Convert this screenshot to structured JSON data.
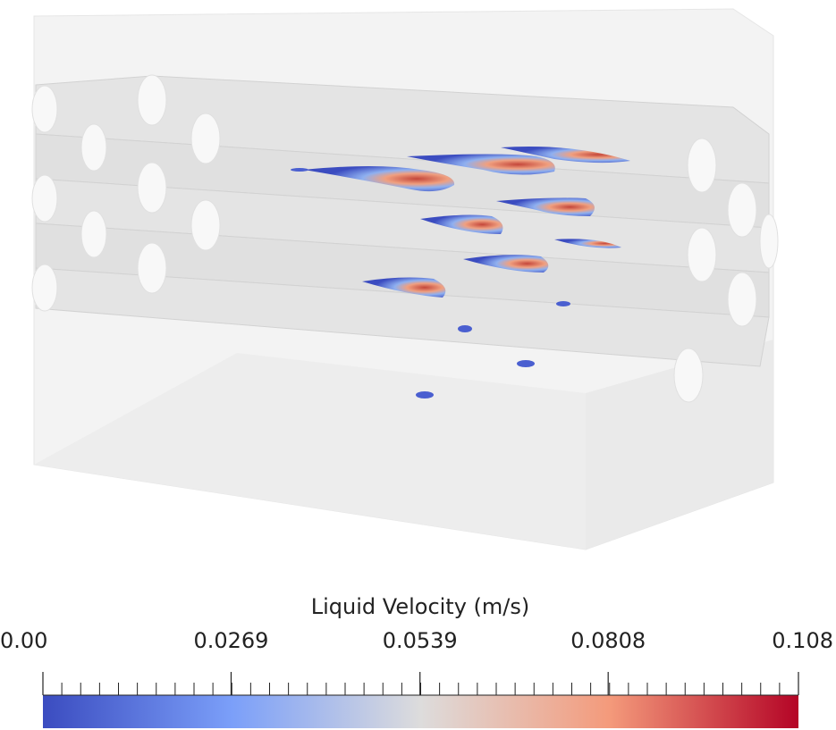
{
  "colorbar": {
    "title": "Liquid Velocity (m/s)",
    "range": [
      0,
      0.108
    ],
    "ticks": [
      {
        "value": 0,
        "label": "0.00"
      },
      0.0269,
      0.0539,
      0.0808,
      0.108
    ]
  }
}
